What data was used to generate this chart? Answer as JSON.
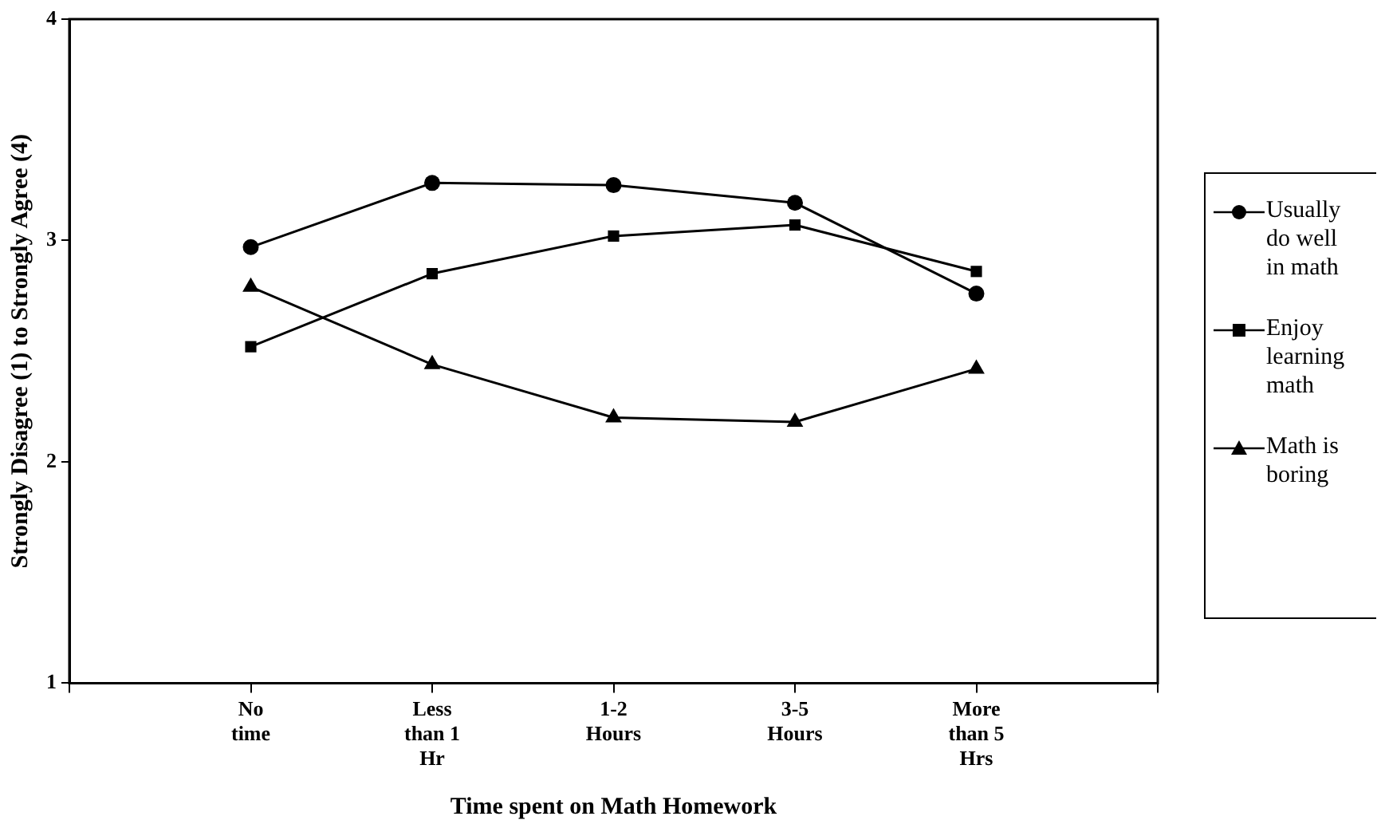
{
  "chart_data": {
    "type": "line",
    "xlabel": "Time spent on Math Homework",
    "ylabel": "Strongly Disagree (1) to Strongly Agree (4)",
    "categories": [
      null,
      "No time",
      "Less than 1 Hr",
      "1-2 Hours",
      "3-5 Hours",
      "More than 5 Hrs",
      null
    ],
    "series": [
      {
        "name": "Usually do well in math",
        "color": "#000000",
        "marker": "circle",
        "values": [
          null,
          2.97,
          3.26,
          3.25,
          3.17,
          2.76,
          null
        ]
      },
      {
        "name": "Enjoy learning math",
        "color": "#000000",
        "marker": "square",
        "values": [
          null,
          2.52,
          2.85,
          3.02,
          3.07,
          2.86,
          null
        ]
      },
      {
        "name": "Math is boring",
        "color": "#000000",
        "marker": "triangle",
        "values": [
          null,
          2.79,
          2.44,
          2.2,
          2.18,
          2.42,
          null
        ]
      }
    ],
    "ylim": [
      1,
      4
    ],
    "yticks": [
      1,
      2,
      3,
      4
    ],
    "grid": false,
    "legend": "right",
    "line_style": "solid"
  }
}
